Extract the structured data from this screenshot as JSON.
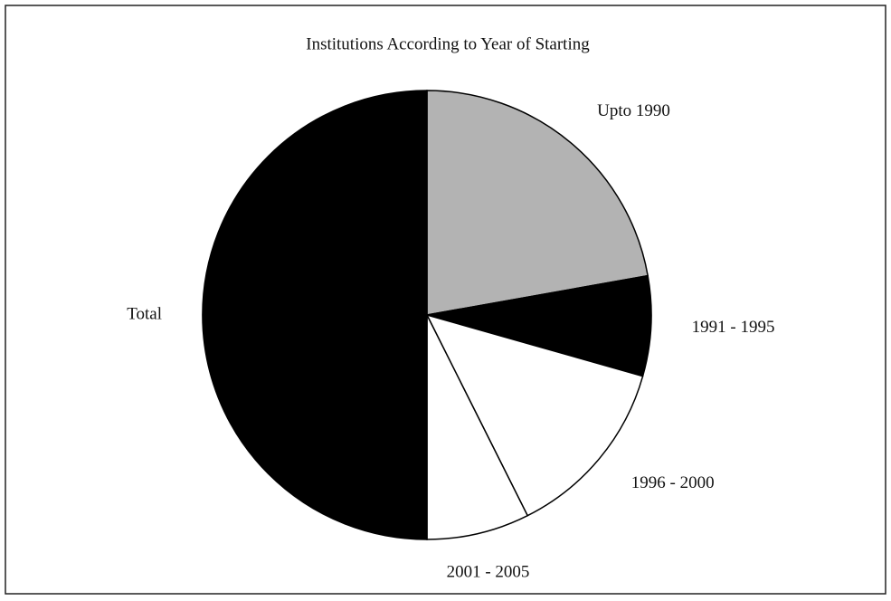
{
  "chart_data": {
    "type": "pie",
    "title": "Institutions According to Year of Starting",
    "categories": [
      "Upto 1990",
      "1991 - 1995",
      "1996 - 2000",
      "2001 - 2005",
      "Total"
    ],
    "values": [
      22.2,
      7.2,
      13.2,
      7.4,
      50
    ],
    "colors": [
      "#b3b3b3",
      "#000000",
      "#ffffff",
      "#ffffff",
      "#000000"
    ]
  }
}
